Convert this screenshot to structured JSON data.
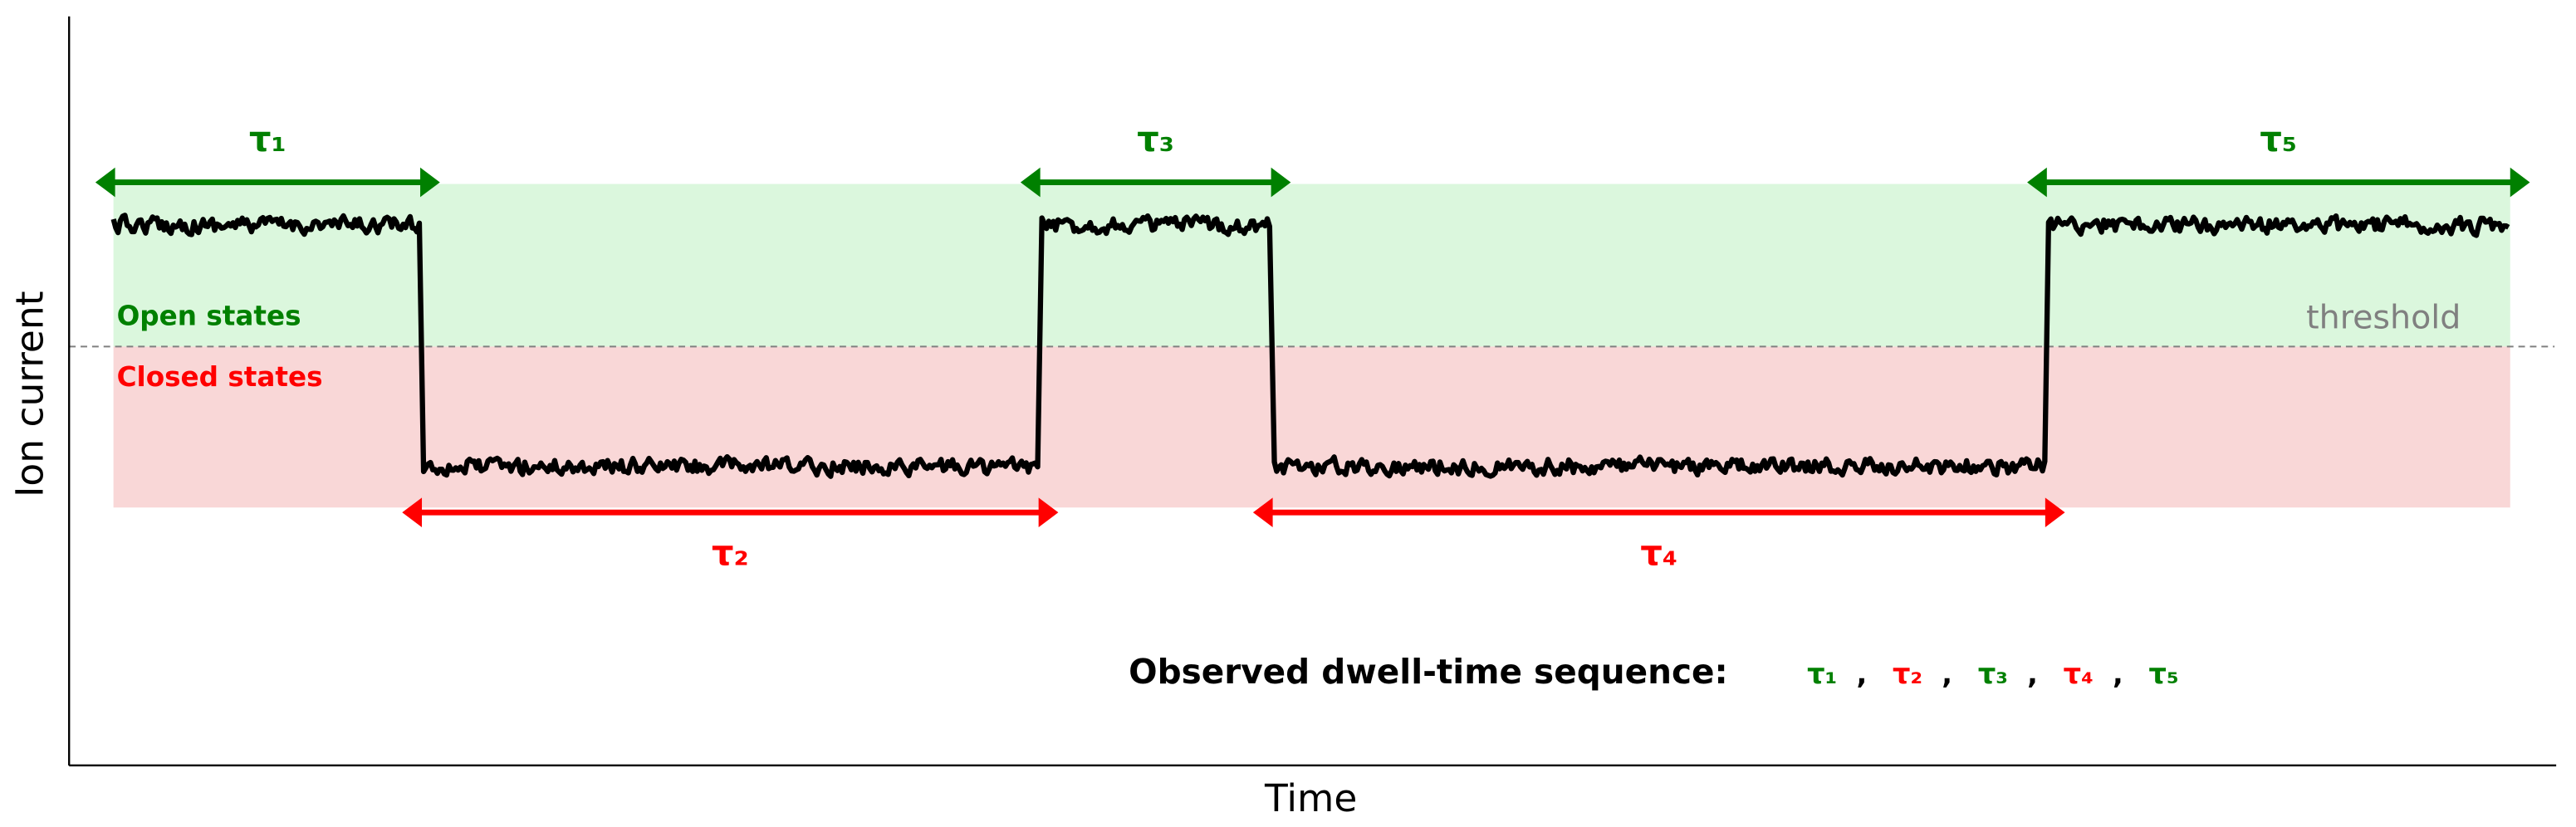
{
  "chart_data": {
    "type": "line",
    "xlabel": "Time",
    "ylabel": "Ion current",
    "xlim": [
      0,
      100
    ],
    "levels": {
      "open": 1.0,
      "closed": 0.0,
      "threshold": 0.5
    },
    "regions": {
      "open_label": "Open states",
      "closed_label": "Closed states",
      "threshold_label": "threshold"
    },
    "segments": [
      {
        "label": "τ₁",
        "state": "open",
        "start": 0,
        "end": 12.8
      },
      {
        "label": "τ₂",
        "state": "closed",
        "start": 12.8,
        "end": 38.6
      },
      {
        "label": "τ₃",
        "state": "open",
        "start": 38.6,
        "end": 48.3
      },
      {
        "label": "τ₄",
        "state": "closed",
        "start": 48.3,
        "end": 80.6
      },
      {
        "label": "τ₅",
        "state": "open",
        "start": 80.6,
        "end": 100
      }
    ],
    "sequence_title": "Observed dwell-time sequence:",
    "sequence_separator": ",",
    "colors": {
      "open": "#008000",
      "closed": "#ff0000",
      "open_fill": "#dbf7dd",
      "closed_fill": "#f9d7d7",
      "trace": "#000000",
      "threshold": "#808080"
    }
  }
}
